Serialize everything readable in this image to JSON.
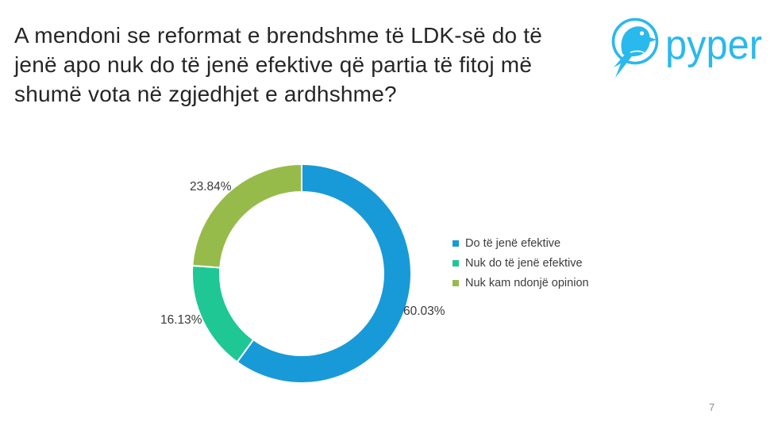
{
  "header": {
    "question": {
      "line1": "A mendoni se reformat e brendshme të LDK-së do të",
      "line2": "jenë apo nuk do të jenë efektive që partia të fitoj më",
      "line3": "shumë vota në zgjedhjet e ardhshme?"
    },
    "logo": {
      "brand": "pyper",
      "color": "#2AB9EC"
    }
  },
  "chart_data": {
    "type": "pie",
    "subtype": "donut",
    "title": "",
    "categories": [
      "Do të jenë efektive",
      "Nuk do të jenë efektive",
      "Nuk kam ndonjë opinion"
    ],
    "values": [
      60.03,
      16.13,
      23.84
    ],
    "data_labels": [
      "60.03%",
      "16.13%",
      "23.84%"
    ],
    "colors": [
      "#189AD8",
      "#1FC795",
      "#97BB4B"
    ],
    "start_angle_deg": 0,
    "direction": "clockwise",
    "donut_hole_ratio": 0.75,
    "legend_position": "right",
    "separator_color": "#FFFFFF"
  },
  "legend": {
    "items": [
      {
        "label": "Do të jenë efektive",
        "color": "#189AD8"
      },
      {
        "label": "Nuk do të jenë efektive",
        "color": "#1FC795"
      },
      {
        "label": "Nuk kam ndonjë opinion",
        "color": "#97BB4B"
      }
    ]
  },
  "footer": {
    "page_number": "7"
  },
  "colors": {
    "title_text": "#262626",
    "label_text": "#3A3A3A",
    "brand_cyan": "#2AB9EC",
    "page_number_text": "#8B8B8B",
    "background": "#FFFFFF"
  }
}
